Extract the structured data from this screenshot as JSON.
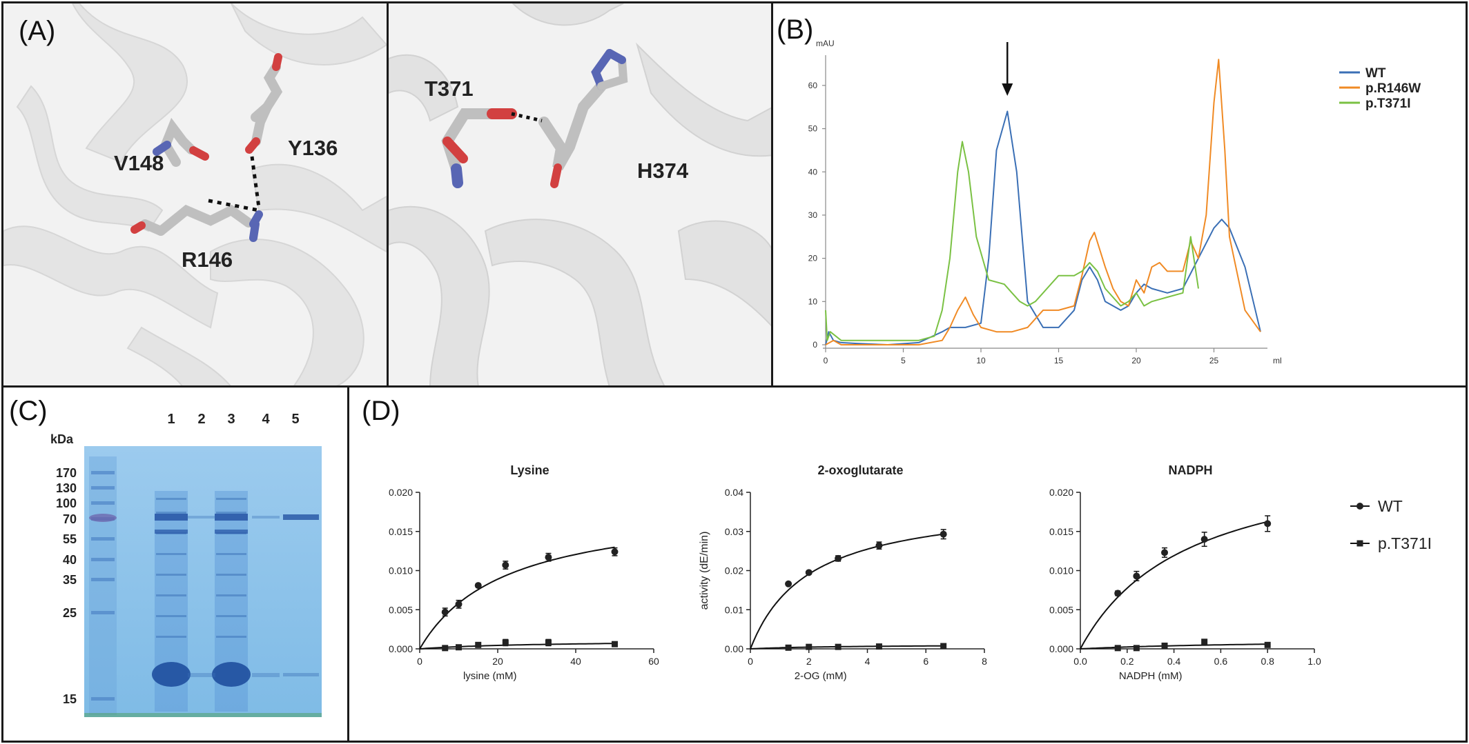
{
  "panels": {
    "a": {
      "label": "(A)",
      "residues_left": [
        "V148",
        "Y136",
        "R146"
      ],
      "residues_right": [
        "T371",
        "H374"
      ]
    },
    "b": {
      "label": "(B)"
    },
    "c": {
      "label": "(C)",
      "unit": "kDa",
      "markers": [
        "170",
        "130",
        "100",
        "70",
        "55",
        "40",
        "35",
        "25",
        "15"
      ],
      "lanes": [
        "1",
        "2",
        "3",
        "4",
        "5"
      ]
    },
    "d": {
      "label": "(D)"
    }
  },
  "colors": {
    "wt": "#3a6fb5",
    "r146w": "#f08a24",
    "t371i": "#7ac143",
    "gel": "#8fc4ea",
    "band": "#2a5aa8"
  },
  "icons": [
    "down-arrow-icon",
    "circle-marker-icon",
    "square-marker-icon"
  ],
  "chart_data": [
    {
      "type": "line",
      "panel": "B",
      "ylabel": "mAU",
      "xlabel": "ml",
      "xlim": [
        0,
        28
      ],
      "ylim": [
        0,
        67
      ],
      "xticks": [
        0,
        5,
        10,
        15,
        20,
        25
      ],
      "yticks": [
        0,
        10,
        20,
        30,
        40,
        50,
        60
      ],
      "annotation": "arrow at 11.7 ml",
      "legend_position": "top-right",
      "series": [
        {
          "name": "WT",
          "color": "#3a6fb5",
          "x": [
            0,
            0.2,
            0.5,
            1,
            2,
            4,
            6,
            7.5,
            8,
            9,
            10,
            10.5,
            11,
            11.7,
            12.3,
            13,
            14,
            15,
            16,
            16.5,
            17,
            17.5,
            18,
            19,
            19.5,
            20,
            20.5,
            21,
            22,
            23,
            24,
            25,
            25.5,
            26,
            27,
            28
          ],
          "y": [
            0,
            3,
            1,
            0.5,
            0.3,
            0,
            0.5,
            3,
            4,
            4,
            5,
            20,
            45,
            54,
            40,
            10,
            4,
            4,
            8,
            15,
            18,
            15,
            10,
            8,
            9,
            12,
            14,
            13,
            12,
            13,
            20,
            27,
            29,
            27,
            18,
            3
          ]
        },
        {
          "name": "p.R146W",
          "color": "#f08a24",
          "x": [
            0,
            0.5,
            1,
            2,
            4,
            6,
            7.5,
            8,
            8.5,
            9,
            9.5,
            10,
            11,
            12,
            13,
            14,
            15,
            16,
            16.5,
            17,
            17.3,
            18,
            18.5,
            19,
            19.5,
            20,
            20.5,
            21,
            21.5,
            22,
            23,
            23.5,
            24,
            24.5,
            25,
            25.3,
            25.7,
            26,
            27,
            28
          ],
          "y": [
            0,
            1,
            0,
            0,
            0,
            0,
            1,
            4,
            8,
            11,
            7,
            4,
            3,
            3,
            4,
            8,
            8,
            9,
            16,
            24,
            26,
            18,
            13,
            10,
            9,
            15,
            12,
            18,
            19,
            17,
            17,
            24,
            20,
            30,
            56,
            66,
            45,
            25,
            8,
            3
          ]
        },
        {
          "name": "p.T371I",
          "color": "#7ac143",
          "x": [
            0,
            0.1,
            0.3,
            1,
            2,
            4,
            6,
            7,
            7.5,
            8,
            8.5,
            8.8,
            9.2,
            9.7,
            10.5,
            11.5,
            12,
            12.5,
            13,
            13.5,
            14,
            15,
            16,
            16.5,
            17,
            17.5,
            18,
            19,
            19.5,
            20,
            20.5,
            21,
            22,
            23,
            23.5,
            24
          ],
          "y": [
            8,
            1,
            3,
            1,
            1,
            1,
            1,
            2,
            8,
            20,
            40,
            47,
            40,
            25,
            15,
            14,
            12,
            10,
            9,
            10,
            12,
            16,
            16,
            17,
            19,
            17,
            13,
            9,
            10,
            12,
            9,
            10,
            11,
            12,
            25,
            13
          ]
        }
      ]
    },
    {
      "type": "scatter",
      "panel": "D",
      "title": "Lysine",
      "xlabel": "lysine (mM)",
      "ylabel": "",
      "xlim": [
        0,
        60
      ],
      "ylim": [
        0,
        0.02
      ],
      "xticks": [
        "0",
        "20",
        "40",
        "60"
      ],
      "yticks": [
        "0.000",
        "0.005",
        "0.010",
        "0.015",
        "0.020"
      ],
      "series": [
        {
          "name": "WT",
          "marker": "circle",
          "x": [
            6.5,
            10,
            15,
            22,
            33,
            50
          ],
          "y": [
            0.0047,
            0.0057,
            0.0081,
            0.0107,
            0.0117,
            0.0124
          ],
          "err": [
            0.0005,
            0.0005,
            0.0002,
            0.0005,
            0.0005,
            0.0005
          ],
          "fit": {
            "vmax": 0.0187,
            "km": 22
          }
        },
        {
          "name": "p.T371I",
          "marker": "square",
          "x": [
            6.5,
            10,
            15,
            22,
            33,
            50
          ],
          "y": [
            0.0001,
            0.0002,
            0.0005,
            0.0008,
            0.0008,
            0.0006
          ],
          "err": [
            0.0002,
            0.0002,
            0.0003,
            0.0004,
            0.0004,
            0.0003
          ],
          "fit": {
            "vmax": 0.0011,
            "km": 30
          }
        }
      ]
    },
    {
      "type": "scatter",
      "panel": "D",
      "title": "2-oxoglutarate",
      "xlabel": "2-OG (mM)",
      "ylabel": "activity (dE/min)",
      "xlim": [
        0,
        8
      ],
      "ylim": [
        0,
        0.04
      ],
      "xticks": [
        "0",
        "2",
        "4",
        "6",
        "8"
      ],
      "yticks": [
        "0.00",
        "0.01",
        "0.02",
        "0.03",
        "0.04"
      ],
      "series": [
        {
          "name": "WT",
          "marker": "circle",
          "x": [
            1.3,
            2,
            3,
            4.4,
            6.6
          ],
          "y": [
            0.0166,
            0.0195,
            0.0231,
            0.0264,
            0.0293
          ],
          "err": [
            0.0003,
            0.0003,
            0.0007,
            0.0009,
            0.0012
          ],
          "fit": {
            "vmax": 0.0382,
            "km": 2.0
          }
        },
        {
          "name": "p.T371I",
          "marker": "square",
          "x": [
            1.3,
            2,
            3,
            4.4,
            6.6
          ],
          "y": [
            0.0003,
            0.0005,
            0.0005,
            0.0006,
            0.0007
          ],
          "err": [
            0.0002,
            0.0002,
            0.0002,
            0.0002,
            0.0003
          ],
          "fit": {
            "vmax": 0.0011,
            "km": 3
          }
        }
      ]
    },
    {
      "type": "scatter",
      "panel": "D",
      "title": "NADPH",
      "xlabel": "NADPH (mM)",
      "ylabel": "",
      "xlim": [
        0,
        1.0
      ],
      "ylim": [
        0,
        0.02
      ],
      "xticks": [
        "0.0",
        "0.2",
        "0.4",
        "0.6",
        "0.8",
        "1.0"
      ],
      "yticks": [
        "0.000",
        "0.005",
        "0.010",
        "0.015",
        "0.020"
      ],
      "series": [
        {
          "name": "WT",
          "marker": "circle",
          "x": [
            0.16,
            0.24,
            0.36,
            0.53,
            0.8
          ],
          "y": [
            0.0071,
            0.0093,
            0.0123,
            0.014,
            0.016
          ],
          "err": [
            0.0003,
            0.0006,
            0.0006,
            0.0009,
            0.001
          ],
          "fit": {
            "vmax": 0.0256,
            "km": 0.46
          }
        },
        {
          "name": "p.T371I",
          "marker": "square",
          "x": [
            0.16,
            0.24,
            0.36,
            0.53,
            0.8
          ],
          "y": [
            0.0001,
            0.0001,
            0.0004,
            0.0009,
            0.0005
          ],
          "err": [
            0.0002,
            0.0002,
            0.0003,
            0.0003,
            0.0003
          ],
          "fit": {
            "vmax": 0.0012,
            "km": 0.8
          }
        }
      ]
    }
  ]
}
